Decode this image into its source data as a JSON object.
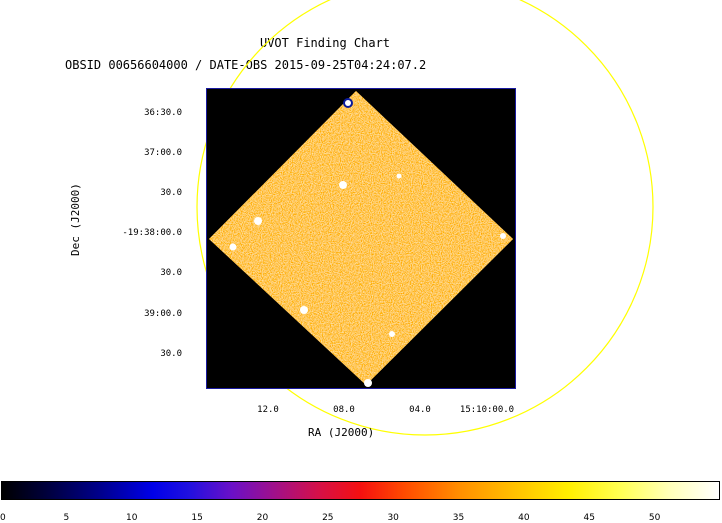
{
  "chart": {
    "title": "UVOT Finding Chart",
    "subtitle": "OBSID 00656604000 / DATE-OBS 2015-09-25T04:24:07.2",
    "xlabel": "RA (J2000)",
    "ylabel": "Dec (J2000)",
    "y_ticks": [
      "36:30.0",
      "37:00.0",
      "30.0",
      "-19:38:00.0",
      "30.0",
      "39:00.0",
      "30.0"
    ],
    "x_ticks": [
      "12.0",
      "08.0",
      "04.0",
      "15:10:00.0"
    ],
    "colorbar_ticks": [
      "0",
      "5",
      "10",
      "15",
      "20",
      "25",
      "30",
      "35",
      "40",
      "45",
      "50"
    ],
    "colorbar_max": 55
  },
  "colors": {
    "overlay_circle": "#ffff00",
    "field_bg": "#000000",
    "frame": "#1a1aa0"
  }
}
